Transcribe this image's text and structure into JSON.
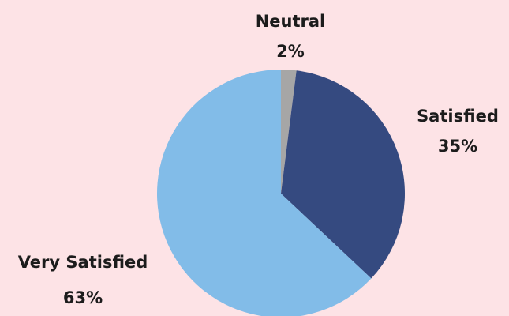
{
  "chart_data": {
    "type": "pie",
    "categories": [
      "Neutral",
      "Satisfied",
      "Very Satisfied"
    ],
    "values": [
      2,
      35,
      63
    ],
    "value_labels": [
      "2%",
      "35%",
      "63%"
    ],
    "colors": [
      "#a6a6a6",
      "#354a80",
      "#82bce8"
    ]
  }
}
